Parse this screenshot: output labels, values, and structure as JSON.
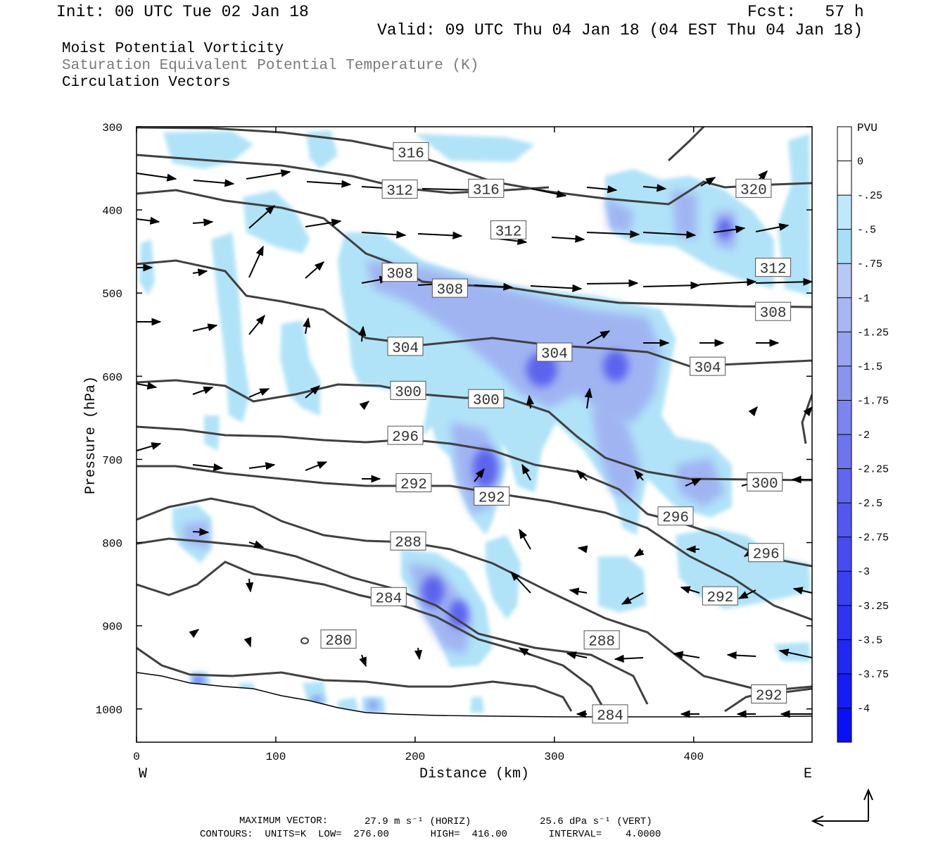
{
  "header": {
    "init": "Init: 00 UTC Tue 02 Jan 18",
    "fcst": "Fcst:   57 h",
    "valid": "Valid: 09 UTC Thu 04 Jan 18 (04 EST Thu 04 Jan 18)",
    "field1": "Moist Potential Vorticity",
    "field2": "Saturation Equivalent Potential Temperature (K)",
    "field3": "Circulation Vectors"
  },
  "footer": {
    "max_label": "MAXIMUM VECTOR:",
    "horiz": "27.9 m s⁻¹ (HORIZ)",
    "vert": "25.6 dPa s⁻¹ (VERT)",
    "contours": "CONTOURS:  UNITS=K  LOW=  276.00       HIGH=  416.00       INTERVAL=    4.0000"
  },
  "colors": {
    "pv_light": "#aee2f8",
    "pv_mid": "#9ea8f0",
    "pv_dark": "#5a5ef0",
    "contour": "#404040"
  },
  "chart_data": {
    "type": "contour",
    "xlabel": "Distance (km)",
    "ylabel": "Pressure (hPa)",
    "xlim": [
      0,
      485
    ],
    "ylim": [
      1040,
      300
    ],
    "x_ticks": [
      0,
      100,
      200,
      300,
      400
    ],
    "y_ticks": [
      300,
      400,
      500,
      600,
      700,
      800,
      900,
      1000
    ],
    "x_left_label": "W",
    "x_right_label": "E",
    "colorbar": {
      "title": "PVU",
      "levels": [
        "0",
        "-.25",
        "-.5",
        "-.75",
        "-1",
        "-1.25",
        "-1.5",
        "-1.75",
        "-2",
        "-2.25",
        "-2.5",
        "-2.75",
        "-3",
        "-3.25",
        "-3.5",
        "-3.75",
        "-4"
      ],
      "colors": [
        "#ffffff",
        "#ffffff",
        "#bfe9fb",
        "#a8dff7",
        "#b8c8f4",
        "#a8b6f2",
        "#98a4f0",
        "#8a94ef",
        "#7c84ef",
        "#6e74ee",
        "#6066ee",
        "#5258ef",
        "#464cef",
        "#3a40f0",
        "#2e34f1",
        "#2228f2",
        "#161cf4",
        "#0a10f6"
      ]
    },
    "contour_labels": [
      {
        "text": "316",
        "x": 197,
        "p": 330
      },
      {
        "text": "312",
        "x": 189,
        "p": 375
      },
      {
        "text": "316",
        "x": 251,
        "p": 374
      },
      {
        "text": "320",
        "x": 443,
        "p": 374
      },
      {
        "text": "312",
        "x": 267,
        "p": 424
      },
      {
        "text": "312",
        "x": 457,
        "p": 469
      },
      {
        "text": "308",
        "x": 189,
        "p": 475
      },
      {
        "text": "308",
        "x": 225,
        "p": 494
      },
      {
        "text": "308",
        "x": 457,
        "p": 522
      },
      {
        "text": "304",
        "x": 193,
        "p": 564
      },
      {
        "text": "304",
        "x": 300,
        "p": 571
      },
      {
        "text": "304",
        "x": 410,
        "p": 588
      },
      {
        "text": "300",
        "x": 195,
        "p": 617
      },
      {
        "text": "300",
        "x": 251,
        "p": 627
      },
      {
        "text": "296",
        "x": 193,
        "p": 671
      },
      {
        "text": "292",
        "x": 199,
        "p": 728
      },
      {
        "text": "292",
        "x": 255,
        "p": 744
      },
      {
        "text": "300",
        "x": 451,
        "p": 727
      },
      {
        "text": "296",
        "x": 387,
        "p": 768
      },
      {
        "text": "288",
        "x": 195,
        "p": 798
      },
      {
        "text": "296",
        "x": 452,
        "p": 812
      },
      {
        "text": "284",
        "x": 181,
        "p": 865
      },
      {
        "text": "292",
        "x": 419,
        "p": 864
      },
      {
        "text": "280",
        "x": 145,
        "p": 916
      },
      {
        "text": "288",
        "x": 334,
        "p": 917
      },
      {
        "text": "292",
        "x": 454,
        "p": 982
      },
      {
        "text": "284",
        "x": 340,
        "p": 1006
      }
    ]
  }
}
